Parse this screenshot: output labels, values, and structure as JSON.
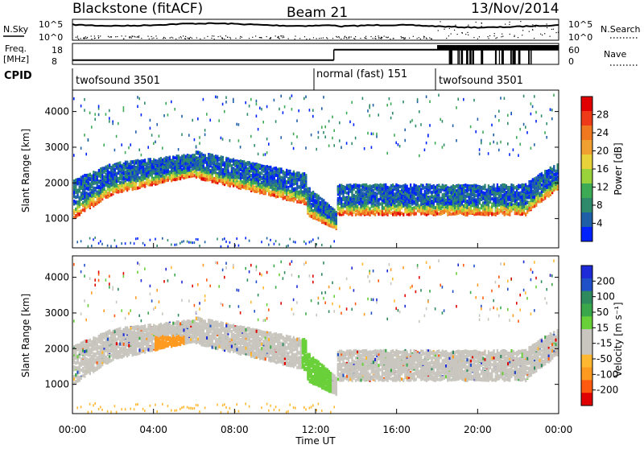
{
  "header": {
    "radar_title": "Blackstone (fitACF)",
    "beam_label": "Beam 21",
    "date_label": "13/Nov/2014"
  },
  "summary_panels": {
    "nsky_label": "N.Sky",
    "nsearch_label": "N.Search",
    "noise_ticks": [
      "10^5",
      "10^0"
    ],
    "freq_label": "Freq.",
    "freq_unit": "[MHz]",
    "freq_ticks": [
      "18",
      "8"
    ],
    "nave_label": "Nave",
    "nave_ticks": [
      "60",
      "0"
    ],
    "cpid_label": "CPID"
  },
  "cpid_segments": [
    {
      "label": "twofsound 3501",
      "start_h": 0.0,
      "end_h": 12.9
    },
    {
      "label": "normal (fast) 151",
      "start_h": 12.9,
      "end_h": 18.0
    },
    {
      "label": "twofsound 3501",
      "start_h": 18.0,
      "end_h": 24.0
    }
  ],
  "colorbars": {
    "power": {
      "label": "Power [dB]",
      "ticks": [
        "28",
        "24",
        "20",
        "16",
        "12",
        "8",
        "4"
      ],
      "colors": [
        "#0022ff",
        "#1f5fa8",
        "#2e8a6a",
        "#3daa55",
        "#9ad23c",
        "#e8d23a",
        "#f0a030",
        "#f07820",
        "#ee3a18",
        "#e00000"
      ]
    },
    "velocity": {
      "label": "Velocity [m s⁻¹]",
      "ticks": [
        "200",
        "100",
        "50",
        "15",
        "-15",
        "-50",
        "-100",
        "-200"
      ],
      "colors": [
        "#e00000",
        "#ff5a10",
        "#ff9a20",
        "#ffb830",
        "#c8c6be",
        "#c8c6be",
        "#6ad03a",
        "#3aa84a",
        "#2f8a5e",
        "#2050c8",
        "#1c2ad8"
      ]
    }
  },
  "chart_data": [
    {
      "type": "heatmap",
      "name": "power",
      "xlabel": "",
      "ylabel": "Slant Range [km]",
      "xlim_hours": [
        0,
        24
      ],
      "ylim_km": [
        180,
        4600
      ],
      "y_ticks": [
        1000,
        2000,
        3000,
        4000
      ],
      "scatter_bands": [
        {
          "from_h": 0.0,
          "to_h": 2.0,
          "center_km": [
            1500,
            2100
          ],
          "width_km": [
            900,
            700
          ]
        },
        {
          "from_h": 2.0,
          "to_h": 6.0,
          "center_km": [
            2100,
            2500
          ],
          "width_km": [
            700,
            500
          ]
        },
        {
          "from_h": 6.0,
          "to_h": 11.5,
          "center_km": [
            2500,
            1800
          ],
          "width_km": [
            600,
            700
          ]
        },
        {
          "from_h": 11.5,
          "to_h": 13.0,
          "center_km": [
            1500,
            950
          ],
          "width_km": [
            700,
            400
          ]
        },
        {
          "from_h": 13.0,
          "to_h": 22.5,
          "center_km": [
            1500,
            1500
          ],
          "width_km": [
            700,
            700
          ]
        },
        {
          "from_h": 22.5,
          "to_h": 24.0,
          "center_km": [
            1600,
            2200
          ],
          "width_km": [
            700,
            600
          ]
        }
      ]
    },
    {
      "type": "heatmap",
      "name": "velocity",
      "xlabel": "Time UT",
      "ylabel": "Slant Range [km]",
      "xlim_hours": [
        0,
        24
      ],
      "ylim_km": [
        180,
        4600
      ],
      "y_ticks": [
        1000,
        2000,
        3000,
        4000
      ],
      "x_ticks": [
        "00:00",
        "04:00",
        "08:00",
        "12:00",
        "16:00",
        "20:00",
        "00:00"
      ]
    }
  ],
  "frequency_trace_mhz": [
    {
      "from_h": 0.0,
      "to_h": 12.9,
      "value": 10
    },
    {
      "from_h": 12.9,
      "to_h": 24.0,
      "value": 15
    }
  ]
}
